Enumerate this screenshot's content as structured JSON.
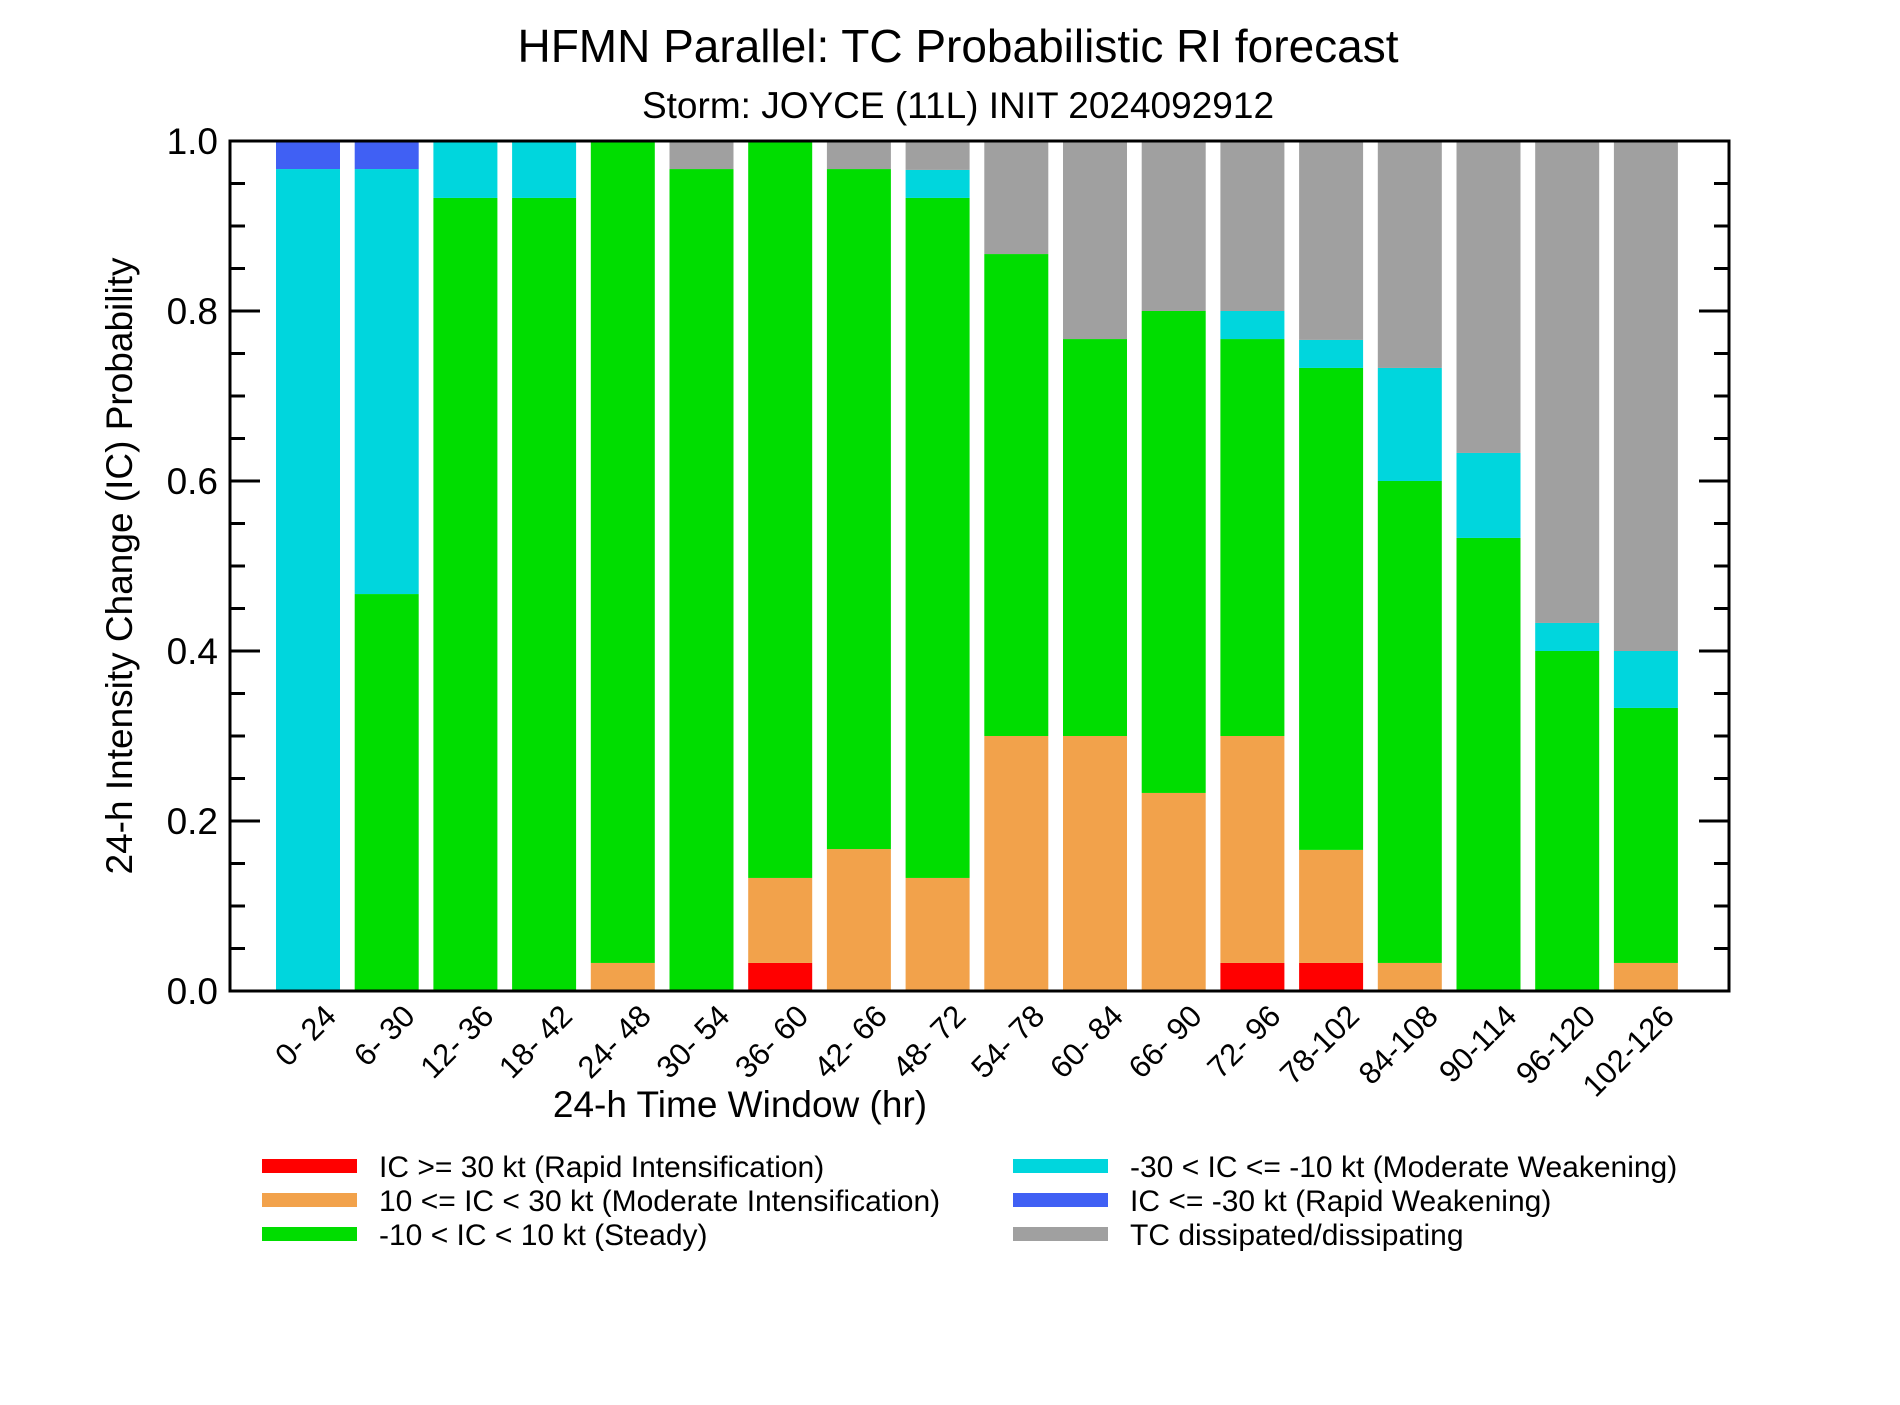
{
  "chart_data": {
    "type": "bar",
    "stacked": true,
    "title": "HFMN Parallel: TC Probabilistic RI forecast",
    "subtitle": "Storm: JOYCE (11L) INIT 2024092912",
    "xlabel": "24-h Time Window (hr)",
    "ylabel": "24-h Intensity Change (IC) Probability",
    "ylim": [
      0,
      1
    ],
    "yticks": [
      "0.0",
      "0.2",
      "0.4",
      "0.6",
      "0.8",
      "1.0"
    ],
    "grid": false,
    "legend_position": "bottom",
    "categories": [
      "0- 24",
      "6- 30",
      "12- 36",
      "18- 42",
      "24- 48",
      "30- 54",
      "36- 60",
      "42- 66",
      "48- 72",
      "54- 78",
      "60- 84",
      "66- 90",
      "72- 96",
      "78-102",
      "84-108",
      "90-114",
      "96-120",
      "102-126"
    ],
    "series": [
      {
        "name": "IC >= 30 kt (Rapid Intensification)",
        "color": "#ff0000",
        "values": [
          0,
          0,
          0,
          0,
          0,
          0,
          0.033,
          0,
          0,
          0,
          0,
          0,
          0.033,
          0.033,
          0,
          0,
          0,
          0
        ]
      },
      {
        "name": "10 <= IC < 30 kt (Moderate Intensification)",
        "color": "#f2a24b",
        "values": [
          0,
          0,
          0,
          0,
          0.033,
          0,
          0.1,
          0.167,
          0.133,
          0.3,
          0.3,
          0.233,
          0.267,
          0.133,
          0.033,
          0,
          0,
          0.033
        ]
      },
      {
        "name": "-10 < IC < 10 kt (Steady)",
        "color": "#00dd00",
        "values": [
          0,
          0.467,
          0.933,
          0.933,
          0.967,
          0.967,
          0.867,
          0.8,
          0.8,
          0.567,
          0.467,
          0.567,
          0.467,
          0.567,
          0.567,
          0.533,
          0.4,
          0.3
        ]
      },
      {
        "name": "-30 < IC <= -10 kt (Moderate Weakening)",
        "color": "#00d6dd",
        "values": [
          0.967,
          0.5,
          0.067,
          0.067,
          0,
          0,
          0,
          0,
          0.033,
          0,
          0,
          0,
          0.033,
          0.033,
          0.133,
          0.1,
          0.033,
          0.067
        ]
      },
      {
        "name": "IC <= -30 kt (Rapid Weakening)",
        "color": "#4060f4",
        "values": [
          0.033,
          0.033,
          0,
          0,
          0,
          0,
          0,
          0,
          0,
          0,
          0,
          0,
          0,
          0,
          0,
          0,
          0,
          0
        ]
      },
      {
        "name": "TC dissipated/dissipating",
        "color": "#a0a0a0",
        "values": [
          0,
          0,
          0,
          0,
          0,
          0.033,
          0,
          0.033,
          0.033,
          0.133,
          0.233,
          0.2,
          0.2,
          0.233,
          0.267,
          0.367,
          0.567,
          0.6
        ]
      }
    ],
    "legend_order": [
      0,
      3,
      1,
      4,
      2,
      5
    ]
  }
}
